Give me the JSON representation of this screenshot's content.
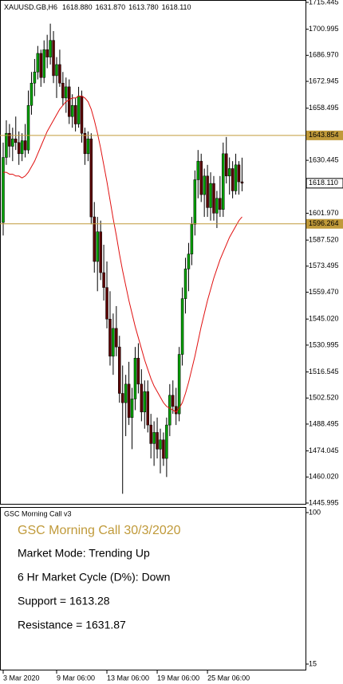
{
  "chart_data": {
    "type": "candlestick",
    "title": "XAUUSD.GB,H6",
    "header_values": [
      1618.88,
      1631.87,
      1613.78,
      1618.11
    ],
    "header_labels": [
      "1618.880",
      "1631.870",
      "1613.780",
      "1618.110"
    ],
    "categories": [
      "3 Mar 2020",
      null,
      null,
      null,
      null,
      null,
      null,
      null,
      null,
      null,
      null,
      null,
      null,
      null,
      null,
      null,
      null,
      "9 Mar 06:00",
      null,
      null,
      null,
      null,
      null,
      null,
      null,
      null,
      null,
      null,
      null,
      null,
      null,
      null,
      null,
      "13 Mar 06:00",
      null,
      null,
      null,
      null,
      null,
      null,
      null,
      null,
      null,
      null,
      null,
      null,
      null,
      null,
      null,
      "19 Mar 06:00",
      null,
      null,
      null,
      null,
      null,
      null,
      null,
      null,
      null,
      null,
      null,
      null,
      null,
      null,
      null,
      "25 Mar 06:00",
      null,
      null,
      null,
      null,
      null,
      null,
      null,
      null,
      null,
      null,
      null
    ],
    "open": [
      1597,
      1632,
      1645,
      1638,
      1642,
      1640,
      1634,
      1641,
      1636,
      1660,
      1672,
      1678,
      1688,
      1675,
      1690,
      1686,
      1695,
      1676,
      1682,
      1672,
      1664,
      1670,
      1654,
      1660,
      1650,
      1665,
      1645,
      1634,
      1642,
      1600,
      1576,
      1592,
      1570,
      1562,
      1545,
      1525,
      1540,
      1530,
      1505,
      1500,
      1510,
      1492,
      1502,
      1524,
      1510,
      1495,
      1506,
      1488,
      1478,
      1484,
      1475,
      1480,
      1470,
      1488,
      1504,
      1498,
      1494,
      1526,
      1556,
      1572,
      1580,
      1596,
      1620,
      1630,
      1612,
      1622,
      1605,
      1618,
      1602,
      1610,
      1604,
      1634,
      1622,
      1626,
      1614,
      1628,
      1618.88
    ],
    "high": [
      1640,
      1652,
      1650,
      1648,
      1654,
      1646,
      1645,
      1650,
      1668,
      1678,
      1685,
      1692,
      1690,
      1695,
      1698,
      1704,
      1700,
      1686,
      1690,
      1678,
      1675,
      1674,
      1666,
      1664,
      1670,
      1668,
      1648,
      1646,
      1645,
      1608,
      1600,
      1598,
      1585,
      1576,
      1560,
      1548,
      1552,
      1536,
      1520,
      1515,
      1522,
      1508,
      1530,
      1532,
      1518,
      1512,
      1512,
      1494,
      1490,
      1492,
      1486,
      1484,
      1492,
      1510,
      1512,
      1508,
      1530,
      1562,
      1578,
      1586,
      1600,
      1625,
      1636,
      1634,
      1626,
      1628,
      1624,
      1622,
      1614,
      1622,
      1640,
      1643,
      1632,
      1630,
      1634,
      1630,
      1631.87
    ],
    "low": [
      1590,
      1628,
      1632,
      1630,
      1636,
      1628,
      1630,
      1632,
      1634,
      1655,
      1665,
      1674,
      1670,
      1672,
      1680,
      1682,
      1672,
      1664,
      1670,
      1660,
      1656,
      1650,
      1648,
      1646,
      1648,
      1640,
      1628,
      1630,
      1596,
      1570,
      1560,
      1566,
      1555,
      1540,
      1520,
      1515,
      1525,
      1500,
      1451,
      1482,
      1488,
      1475,
      1496,
      1505,
      1490,
      1486,
      1484,
      1470,
      1466,
      1470,
      1462,
      1466,
      1460,
      1482,
      1494,
      1488,
      1490,
      1520,
      1548,
      1560,
      1574,
      1590,
      1610,
      1608,
      1600,
      1600,
      1598,
      1598,
      1594,
      1600,
      1600,
      1618,
      1612,
      1610,
      1612,
      1612,
      1613.78
    ],
    "close": [
      1632,
      1645,
      1638,
      1642,
      1640,
      1634,
      1641,
      1636,
      1660,
      1672,
      1678,
      1688,
      1675,
      1690,
      1686,
      1695,
      1676,
      1682,
      1672,
      1664,
      1670,
      1654,
      1660,
      1650,
      1665,
      1645,
      1634,
      1642,
      1600,
      1576,
      1592,
      1570,
      1562,
      1545,
      1525,
      1540,
      1530,
      1505,
      1500,
      1510,
      1492,
      1502,
      1524,
      1510,
      1495,
      1506,
      1488,
      1478,
      1484,
      1475,
      1480,
      1470,
      1488,
      1504,
      1498,
      1494,
      1526,
      1556,
      1572,
      1580,
      1596,
      1620,
      1630,
      1612,
      1622,
      1605,
      1618,
      1602,
      1610,
      1604,
      1634,
      1622,
      1626,
      1614,
      1628,
      1618.88,
      1618.11
    ],
    "up_color": "#00a000",
    "down_color": "#5c0000",
    "ma": {
      "color": "#e01010",
      "values": [
        1624,
        1624,
        1623,
        1623,
        1622,
        1622,
        1621,
        1622,
        1624,
        1627,
        1630,
        1634,
        1638,
        1642,
        1646,
        1649,
        1652,
        1655,
        1658,
        1660,
        1662,
        1663,
        1664,
        1664,
        1665,
        1665,
        1664,
        1662,
        1658,
        1652,
        1645,
        1637,
        1628,
        1619,
        1609,
        1599,
        1590,
        1580,
        1571,
        1563,
        1555,
        1548,
        1541,
        1535,
        1529,
        1523,
        1518,
        1513,
        1509,
        1506,
        1503,
        1500,
        1498,
        1497,
        1496,
        1495,
        1497,
        1500,
        1505,
        1511,
        1518,
        1525,
        1533,
        1541,
        1548,
        1555,
        1561,
        1567,
        1572,
        1577,
        1581,
        1585,
        1589,
        1592,
        1595,
        1598,
        1600
      ]
    },
    "hlines": [
      {
        "value": 1643.854,
        "color": "#c09a3a"
      },
      {
        "value": 1596.264,
        "color": "#c09a3a"
      }
    ],
    "ylim": [
      1445.57,
      1716.73
    ],
    "yticks": [
      {
        "value": 1715.445,
        "label": "1715.445"
      },
      {
        "value": 1700.995,
        "label": "1700.995"
      },
      {
        "value": 1686.97,
        "label": "1686.970"
      },
      {
        "value": 1672.945,
        "label": "1672.945"
      },
      {
        "value": 1658.495,
        "label": "1658.495"
      },
      {
        "value": 1630.445,
        "label": "1630.445"
      },
      {
        "value": 1601.97,
        "label": "1601.970"
      },
      {
        "value": 1587.52,
        "label": "1587.520"
      },
      {
        "value": 1573.495,
        "label": "1573.495"
      },
      {
        "value": 1559.47,
        "label": "1559.470"
      },
      {
        "value": 1545.02,
        "label": "1545.020"
      },
      {
        "value": 1530.995,
        "label": "1530.995"
      },
      {
        "value": 1516.545,
        "label": "1516.545"
      },
      {
        "value": 1502.52,
        "label": "1502.520"
      },
      {
        "value": 1488.495,
        "label": "1488.495"
      },
      {
        "value": 1474.045,
        "label": "1474.045"
      },
      {
        "value": 1460.02,
        "label": "1460.020"
      },
      {
        "value": 1445.995,
        "label": "1445.995"
      }
    ]
  },
  "indicator": {
    "title": "GSC Morning Call v3",
    "heading": "GSC Morning Call 30/3/2020",
    "lines": [
      "Market Mode: Trending Up",
      "6 Hr Market Cycle (D%): Down",
      "Support = 1613.28",
      "Resistance = 1631.87"
    ],
    "ylim": [
      11.87,
      103.13
    ],
    "yticks": [
      15,
      100
    ]
  }
}
